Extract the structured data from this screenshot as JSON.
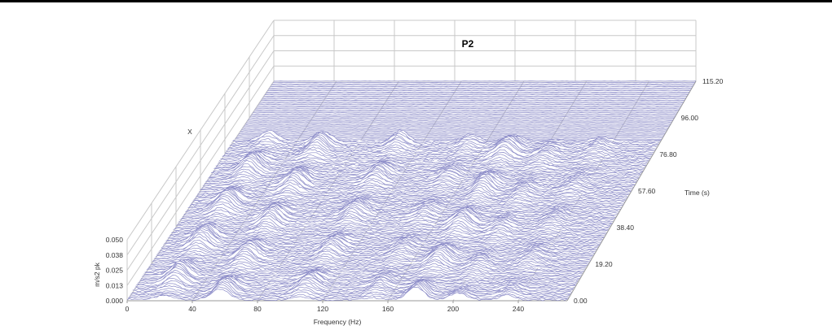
{
  "chart_data": {
    "type": "waterfall",
    "title": "P2",
    "channel": "X",
    "xlabel": "Frequency (Hz)",
    "ylabel": "m/s2 pk",
    "zlabel": "Time (s)",
    "xlim": [
      0,
      270
    ],
    "ylim": [
      0,
      0.05
    ],
    "zlim": [
      0,
      115.2
    ],
    "x_ticks": [
      "0",
      "40",
      "80",
      "120",
      "160",
      "200",
      "240"
    ],
    "y_ticks": [
      "0.000",
      "0.013",
      "0.025",
      "0.038",
      "0.050"
    ],
    "z_ticks": [
      "0.00",
      "19.20",
      "38.40",
      "57.60",
      "76.80",
      "96.00",
      "115.20"
    ],
    "series_color": "#8c8cc8",
    "grid": true,
    "active_time_range": [
      0,
      84
    ],
    "peaks": [
      {
        "freq": 23,
        "amp": 0.012
      },
      {
        "freq": 57,
        "amp": 0.011
      },
      {
        "freq": 106,
        "amp": 0.009
      },
      {
        "freq": 150,
        "amp": 0.006
      },
      {
        "freq": 177,
        "amp": 0.011
      },
      {
        "freq": 203,
        "amp": 0.006
      },
      {
        "freq": 233,
        "amp": 0.005
      }
    ]
  }
}
